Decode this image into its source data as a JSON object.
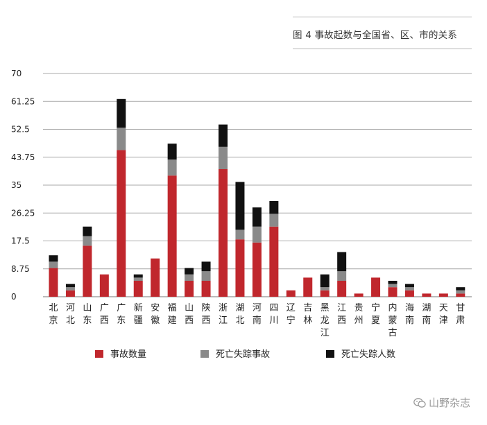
{
  "caption": "图 4  事故起数与全国省、区、市的关系",
  "watermark": {
    "text": "山野杂志",
    "icon": "wechat-icon"
  },
  "chart_data": {
    "type": "bar",
    "stacked": true,
    "ylim": [
      0,
      70
    ],
    "yticks": [
      "0",
      "8.75",
      "17.5",
      "26.25",
      "35",
      "43.75",
      "52.5",
      "61.25",
      "70"
    ],
    "grid": true,
    "legend_position": "bottom",
    "categories": [
      [
        "北",
        "京"
      ],
      [
        "河",
        "北"
      ],
      [
        "山",
        "东"
      ],
      [
        "广",
        "西"
      ],
      [
        "广",
        "东"
      ],
      [
        "新",
        "疆"
      ],
      [
        "安",
        "徽"
      ],
      [
        "福",
        "建"
      ],
      [
        "山",
        "西"
      ],
      [
        "陕",
        "西"
      ],
      [
        "浙",
        "江"
      ],
      [
        "湖",
        "北"
      ],
      [
        "河",
        "南"
      ],
      [
        "四",
        "川"
      ],
      [
        "辽",
        "宁"
      ],
      [
        "吉",
        "林"
      ],
      [
        "黑",
        "龙",
        "江"
      ],
      [
        "江",
        "西"
      ],
      [
        "贵",
        "州"
      ],
      [
        "宁",
        "夏"
      ],
      [
        "内",
        "蒙",
        "古"
      ],
      [
        "海",
        "南"
      ],
      [
        "湖",
        "南"
      ],
      [
        "天",
        "津"
      ],
      [
        "甘",
        "肃"
      ]
    ],
    "series": [
      {
        "name": "事故数量",
        "color": "#c0272d",
        "values": [
          9,
          2,
          16,
          7,
          46,
          5,
          12,
          38,
          5,
          5,
          40,
          18,
          17,
          22,
          2,
          6,
          2,
          5,
          1,
          6,
          3,
          2,
          1,
          1,
          1
        ]
      },
      {
        "name": "死亡失踪事故",
        "color": "#8a8a8a",
        "values": [
          2,
          1,
          3,
          0,
          7,
          1,
          0,
          5,
          2,
          3,
          7,
          3,
          5,
          4,
          0,
          0,
          1,
          3,
          0,
          0,
          1,
          1,
          0,
          0,
          1
        ]
      },
      {
        "name": "死亡失踪人数",
        "color": "#111111",
        "values": [
          2,
          1,
          3,
          0,
          9,
          1,
          0,
          5,
          2,
          3,
          7,
          15,
          6,
          4,
          0,
          0,
          4,
          6,
          0,
          0,
          1,
          1,
          0,
          0,
          1
        ]
      }
    ]
  }
}
